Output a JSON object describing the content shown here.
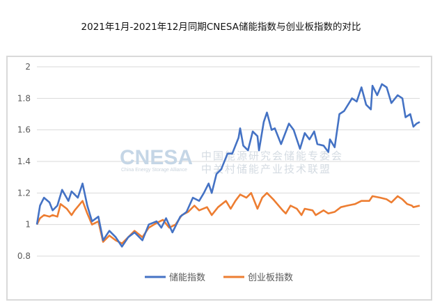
{
  "chart_data": {
    "type": "line",
    "title": "2021年1月-2021年12月同期CNESA储能指数与创业板指数的对比",
    "xlabel": "",
    "ylabel": "",
    "x_unit": "trading day index",
    "ylim": [
      0.8,
      2.0
    ],
    "yticks": [
      "0.8",
      "1",
      "1.2",
      "1.4",
      "1.6",
      "1.8",
      "2"
    ],
    "ytick_values": [
      0.8,
      1.0,
      1.2,
      1.4,
      1.6,
      1.8,
      2.0
    ],
    "grid": true,
    "legend_position": "bottom",
    "watermark": {
      "logo": "CNESA",
      "tagline": "China Energy Storage Alliance",
      "line1": "中国能源研究会储能专委会",
      "line2": "中关村储能产业技术联盟"
    },
    "series": [
      {
        "name": "储能指数",
        "color": "#4472c4",
        "points": [
          [
            0,
            1.0
          ],
          [
            2,
            1.12
          ],
          [
            4.5,
            1.17
          ],
          [
            8,
            1.14
          ],
          [
            10,
            1.09
          ],
          [
            13,
            1.12
          ],
          [
            16,
            1.22
          ],
          [
            20,
            1.15
          ],
          [
            22,
            1.21
          ],
          [
            26,
            1.17
          ],
          [
            29,
            1.26
          ],
          [
            32,
            1.12
          ],
          [
            35,
            1.02
          ],
          [
            39,
            1.05
          ],
          [
            42,
            0.9
          ],
          [
            46,
            0.96
          ],
          [
            50,
            0.92
          ],
          [
            54,
            0.86
          ],
          [
            58,
            0.92
          ],
          [
            62,
            0.95
          ],
          [
            67,
            0.9
          ],
          [
            71,
            1.0
          ],
          [
            76,
            1.02
          ],
          [
            79,
            0.98
          ],
          [
            82,
            1.04
          ],
          [
            86,
            0.95
          ],
          [
            91,
            1.05
          ],
          [
            95,
            1.08
          ],
          [
            99,
            1.17
          ],
          [
            103,
            1.15
          ],
          [
            106,
            1.2
          ],
          [
            109,
            1.26
          ],
          [
            111,
            1.2
          ],
          [
            114,
            1.32
          ],
          [
            117,
            1.35
          ],
          [
            121,
            1.45
          ],
          [
            124,
            1.45
          ],
          [
            128,
            1.55
          ],
          [
            129,
            1.61
          ],
          [
            131,
            1.5
          ],
          [
            134,
            1.47
          ],
          [
            137,
            1.59
          ],
          [
            140,
            1.56
          ],
          [
            141,
            1.47
          ],
          [
            144,
            1.65
          ],
          [
            146,
            1.71
          ],
          [
            149,
            1.6
          ],
          [
            151,
            1.61
          ],
          [
            155,
            1.51
          ],
          [
            160,
            1.64
          ],
          [
            163,
            1.6
          ],
          [
            167,
            1.48
          ],
          [
            170,
            1.58
          ],
          [
            173,
            1.54
          ],
          [
            176,
            1.59
          ],
          [
            178,
            1.51
          ],
          [
            182,
            1.5
          ],
          [
            185,
            1.46
          ],
          [
            186,
            1.54
          ],
          [
            189,
            1.49
          ],
          [
            192,
            1.7
          ],
          [
            195,
            1.72
          ],
          [
            200,
            1.8
          ],
          [
            203,
            1.78
          ],
          [
            206,
            1.87
          ],
          [
            209,
            1.76
          ],
          [
            212,
            1.73
          ],
          [
            213,
            1.88
          ],
          [
            216,
            1.82
          ],
          [
            219,
            1.89
          ],
          [
            222,
            1.87
          ],
          [
            225,
            1.77
          ],
          [
            229,
            1.82
          ],
          [
            232,
            1.8
          ],
          [
            234,
            1.68
          ],
          [
            237,
            1.7
          ],
          [
            239,
            1.62
          ],
          [
            241,
            1.64
          ],
          [
            243,
            1.65
          ]
        ]
      },
      {
        "name": "创业板指数",
        "color": "#ed7d31",
        "points": [
          [
            0,
            1.0
          ],
          [
            2,
            1.04
          ],
          [
            4.5,
            1.06
          ],
          [
            8,
            1.05
          ],
          [
            10,
            1.06
          ],
          [
            13,
            1.05
          ],
          [
            15,
            1.13
          ],
          [
            19,
            1.1
          ],
          [
            22,
            1.06
          ],
          [
            24,
            1.09
          ],
          [
            29,
            1.15
          ],
          [
            32,
            1.07
          ],
          [
            35,
            1.0
          ],
          [
            39,
            1.02
          ],
          [
            42,
            0.89
          ],
          [
            46,
            0.93
          ],
          [
            50,
            0.9
          ],
          [
            54,
            0.88
          ],
          [
            58,
            0.92
          ],
          [
            62,
            0.96
          ],
          [
            67,
            0.92
          ],
          [
            71,
            0.98
          ],
          [
            76,
            1.01
          ],
          [
            80,
            1.03
          ],
          [
            84,
            0.98
          ],
          [
            88,
            1.0
          ],
          [
            92,
            1.06
          ],
          [
            96,
            1.08
          ],
          [
            100,
            1.12
          ],
          [
            103,
            1.09
          ],
          [
            108,
            1.11
          ],
          [
            111,
            1.06
          ],
          [
            115,
            1.11
          ],
          [
            120,
            1.15
          ],
          [
            123,
            1.1
          ],
          [
            126,
            1.15
          ],
          [
            129,
            1.19
          ],
          [
            133,
            1.17
          ],
          [
            136,
            1.2
          ],
          [
            140,
            1.1
          ],
          [
            143,
            1.17
          ],
          [
            146,
            1.2
          ],
          [
            150,
            1.16
          ],
          [
            156,
            1.09
          ],
          [
            158,
            1.07
          ],
          [
            161,
            1.12
          ],
          [
            165,
            1.1
          ],
          [
            168,
            1.06
          ],
          [
            170,
            1.1
          ],
          [
            175,
            1.09
          ],
          [
            177,
            1.06
          ],
          [
            182,
            1.09
          ],
          [
            185,
            1.07
          ],
          [
            189,
            1.08
          ],
          [
            193,
            1.11
          ],
          [
            197,
            1.12
          ],
          [
            202,
            1.13
          ],
          [
            206,
            1.15
          ],
          [
            211,
            1.15
          ],
          [
            213,
            1.18
          ],
          [
            218,
            1.17
          ],
          [
            222,
            1.16
          ],
          [
            225,
            1.14
          ],
          [
            229,
            1.18
          ],
          [
            232,
            1.16
          ],
          [
            235,
            1.13
          ],
          [
            238,
            1.12
          ],
          [
            239,
            1.11
          ],
          [
            243,
            1.12
          ]
        ]
      }
    ]
  }
}
